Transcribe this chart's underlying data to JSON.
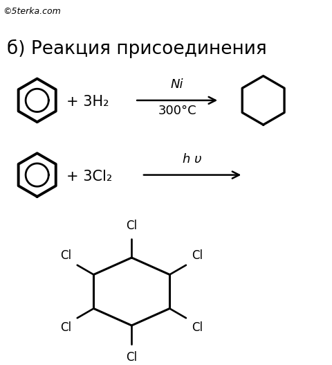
{
  "title": "б) Реакция присоединения",
  "watermark": "©5terka.com",
  "reaction1_reagent": "+ 3H₂",
  "reaction1_cat_top": "Ni",
  "reaction1_cat_bot": "300°C",
  "reaction2_reagent": "+ 3Cl₂",
  "reaction2_cat": "h υ",
  "bg_color": "#ffffff",
  "line_color": "#000000",
  "watermark_fontsize": 9,
  "title_fontsize": 19,
  "text_fontsize": 15,
  "cat_fontsize": 13,
  "cl_fontsize": 12
}
